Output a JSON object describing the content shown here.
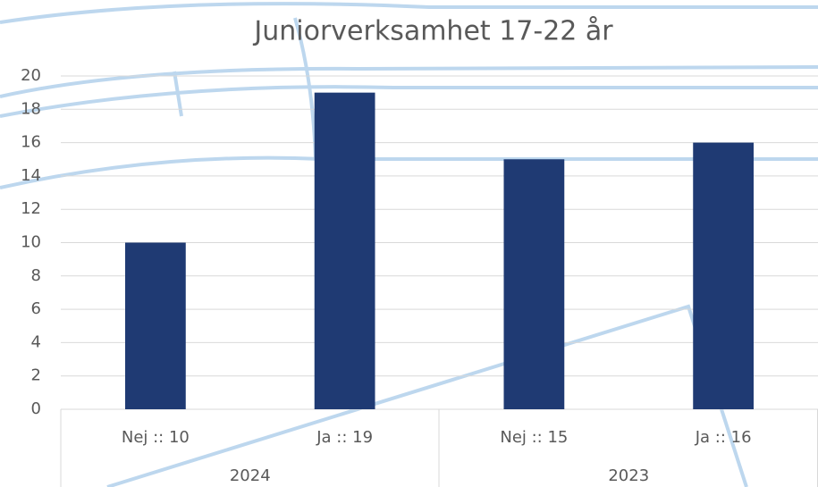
{
  "chart_data": {
    "type": "bar",
    "title": "Juniorverksamhet 17-22 år",
    "groups": [
      {
        "label": "2024",
        "categories": [
          "Nej :: 10",
          "Ja :: 19"
        ]
      },
      {
        "label": "2023",
        "categories": [
          "Nej :: 15",
          "Ja :: 16"
        ]
      }
    ],
    "values": [
      10,
      19,
      15,
      16
    ],
    "color": "#1f3a73",
    "ylim": [
      0,
      20
    ],
    "yticks": [
      0,
      2,
      4,
      6,
      8,
      10,
      12,
      14,
      16,
      18,
      20
    ],
    "grid": true
  }
}
